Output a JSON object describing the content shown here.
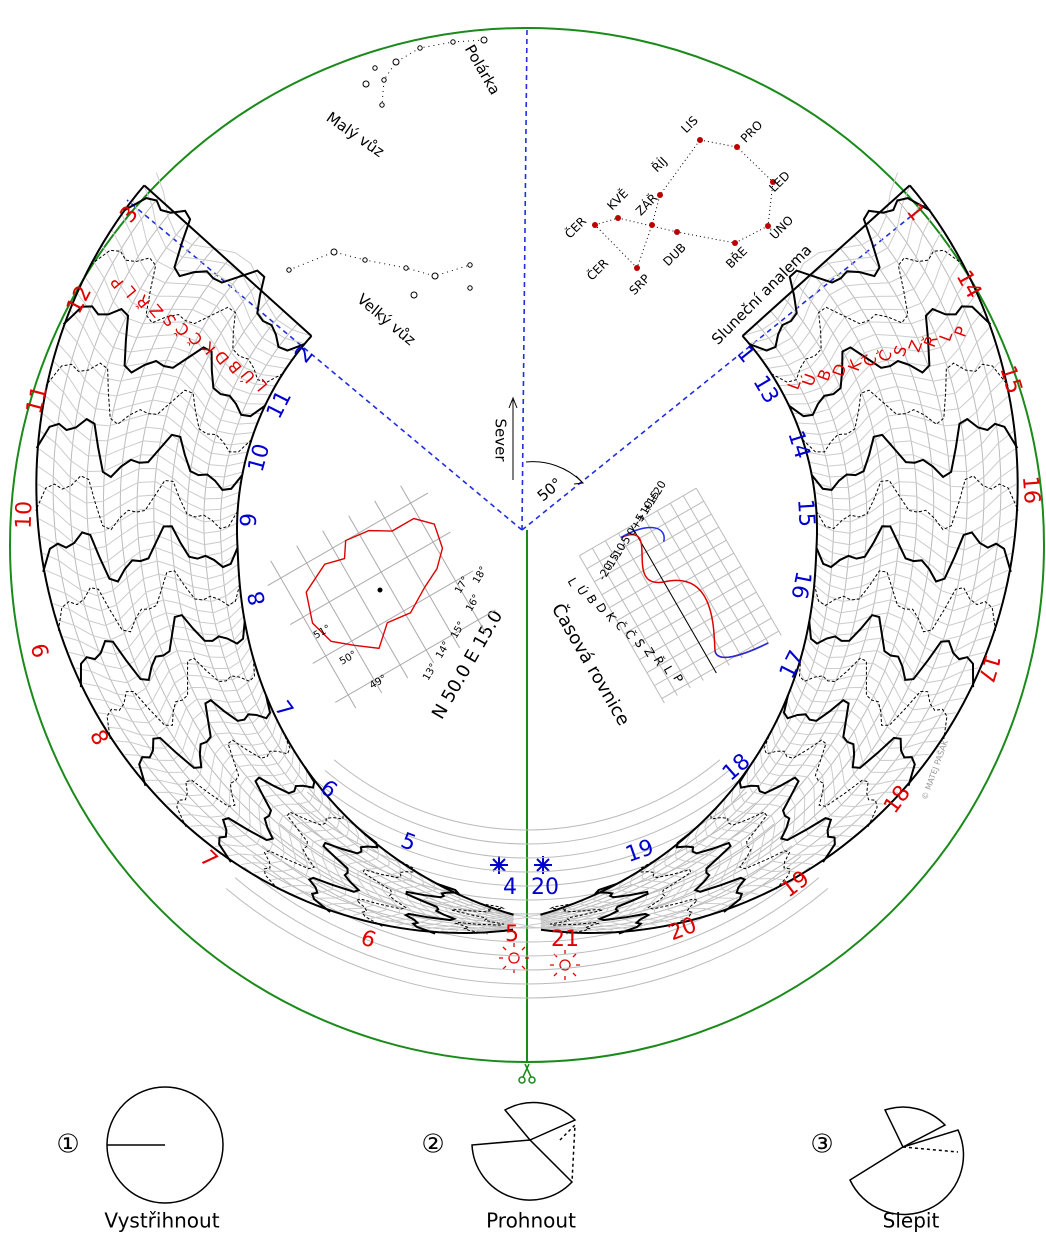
{
  "constellations": {
    "polaris": "Polárka",
    "little_dipper": "Malý vůz",
    "big_dipper": "Velký vůz"
  },
  "analemma": {
    "title": "Sluneční analema",
    "months": [
      "LIS",
      "PRO",
      "LED",
      "ÚNO",
      "BŘE",
      "DUB",
      "KVĚ",
      "ČER",
      "ČER",
      "SRP",
      "ZÁŘ",
      "ŘÍJ"
    ]
  },
  "north": "Sever",
  "angle": "50°",
  "location": "N 50.0   E 15.0",
  "map": {
    "lat_labels": [
      "51°",
      "50°",
      "49°"
    ],
    "lon_labels": [
      "13°",
      "14°",
      "15°",
      "16°",
      "17°",
      "18°"
    ]
  },
  "equation_of_time": {
    "title": "Časová rovnice",
    "ticks": [
      "+20",
      "+15",
      "+10",
      "+5",
      "0",
      "-5",
      "-10",
      "-15",
      "-20"
    ],
    "months": [
      "L",
      "Ú",
      "B",
      "D",
      "K",
      "Č",
      "Č",
      "S",
      "Z",
      "Ř",
      "L",
      "P"
    ]
  },
  "band_months_left": [
    "L",
    "Ú",
    "B",
    "D",
    "K",
    "Č",
    "Č",
    "S",
    "Z",
    "Ř",
    "L",
    "P"
  ],
  "band_months_right": [
    "L",
    "Ú",
    "B",
    "D",
    "K",
    "Č",
    "Č",
    "S",
    "Z",
    "Ř",
    "L",
    "P"
  ],
  "hours": {
    "left_outer": [
      "3",
      "12",
      "11",
      "10",
      "9",
      "8",
      "7",
      "6",
      "5"
    ],
    "left_inner": [
      "2",
      "11",
      "10",
      "9",
      "8",
      "7",
      "6",
      "5",
      "4"
    ],
    "right_inner": [
      "1",
      "13",
      "14",
      "15",
      "16",
      "17",
      "18",
      "19",
      "20"
    ],
    "right_outer": [
      "1",
      "14",
      "15",
      "16",
      "17",
      "18",
      "19",
      "20",
      "21"
    ]
  },
  "steps": [
    {
      "number": "①",
      "label": "Vystřihnout"
    },
    {
      "number": "②",
      "label": "Prohnout"
    },
    {
      "number": "③",
      "label": "Slepit"
    }
  ],
  "copyright": "© MATEJ PAŠÁK"
}
